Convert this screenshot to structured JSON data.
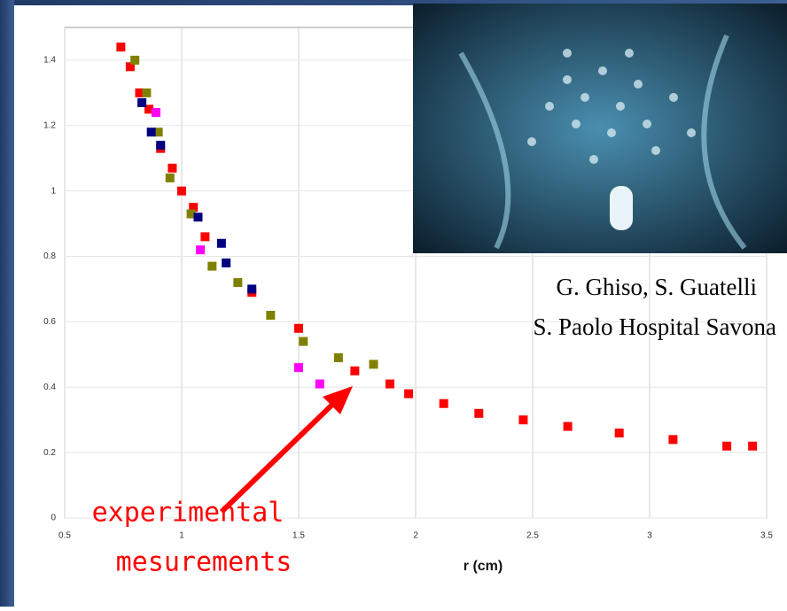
{
  "chart_data": {
    "type": "scatter",
    "x_label": "r (cm)",
    "credits": [
      "G. Ghiso, S. Guatelli",
      "S. Paolo Hospital Savona"
    ],
    "annotation": [
      "experimental",
      "mesurements"
    ],
    "xlim": [
      0.5,
      3.5
    ],
    "xticks": [
      0.5,
      1,
      1.5,
      2,
      2.5,
      3,
      3.5
    ],
    "ylim": [
      0,
      1.5
    ],
    "yticks": [
      0,
      0.2,
      0.4,
      0.6,
      0.8,
      1,
      1.2,
      1.4
    ],
    "grid": true,
    "series": [
      {
        "color": "#ff0000",
        "x": [
          0.74,
          0.78,
          0.82,
          0.86,
          0.91,
          0.96,
          1.0,
          1.05,
          1.1,
          1.3,
          1.5,
          1.74,
          1.89,
          1.97,
          2.12,
          2.27,
          2.46,
          2.65,
          2.87,
          3.1,
          3.33,
          3.44
        ],
        "values": [
          1.44,
          1.38,
          1.3,
          1.25,
          1.13,
          1.07,
          1.0,
          0.95,
          0.86,
          0.69,
          0.58,
          0.45,
          0.41,
          0.38,
          0.35,
          0.32,
          0.3,
          0.28,
          0.26,
          0.24,
          0.22,
          0.22
        ]
      },
      {
        "color": "#808000",
        "x": [
          0.8,
          0.85,
          0.9,
          0.95,
          1.04,
          1.13,
          1.24,
          1.38,
          1.52,
          1.67,
          1.82
        ],
        "values": [
          1.4,
          1.3,
          1.18,
          1.04,
          0.93,
          0.77,
          0.72,
          0.62,
          0.54,
          0.49,
          0.47
        ]
      },
      {
        "color": "#000080",
        "x": [
          0.83,
          0.87,
          0.91,
          1.07,
          1.17,
          1.19,
          1.3
        ],
        "values": [
          1.27,
          1.18,
          1.14,
          0.92,
          0.84,
          0.78,
          0.7
        ]
      },
      {
        "color": "#ff00ff",
        "x": [
          0.89,
          1.08,
          1.5,
          1.59
        ],
        "values": [
          1.24,
          0.82,
          0.46,
          0.41
        ]
      }
    ]
  }
}
